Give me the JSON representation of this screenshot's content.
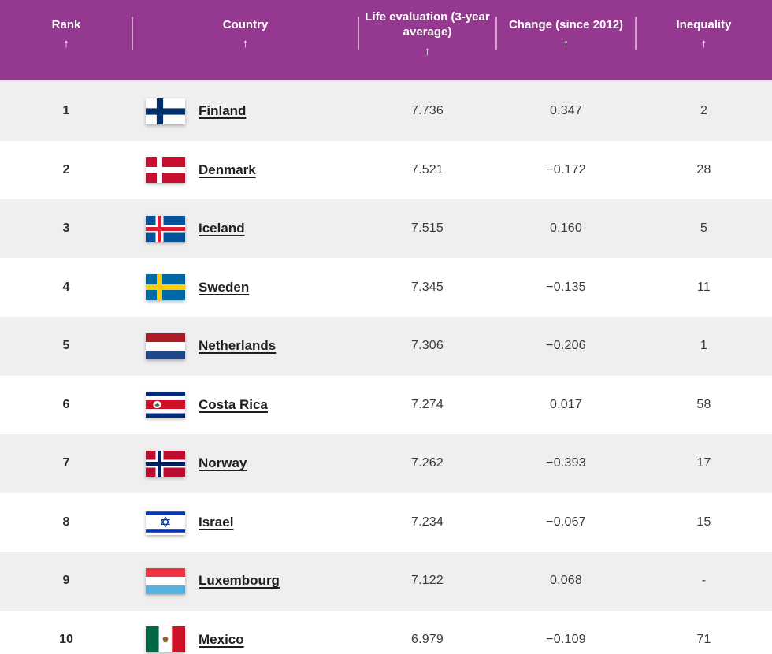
{
  "header": {
    "columns": [
      {
        "id": "rank",
        "label": "Rank",
        "sort_icon": "↑"
      },
      {
        "id": "country",
        "label": "Country",
        "sort_icon": "↑"
      },
      {
        "id": "life_evaluation",
        "label": "Life evaluation (3-year average)",
        "sort_icon": "↑"
      },
      {
        "id": "change",
        "label": "Change (since 2012)",
        "sort_icon": "↑"
      },
      {
        "id": "inequality",
        "label": "Inequality",
        "sort_icon": "↑"
      }
    ]
  },
  "table": {
    "rows": [
      {
        "rank": "1",
        "flag": "finland",
        "country": "Finland",
        "life_evaluation": "7.736",
        "change": "0.347",
        "inequality": "2"
      },
      {
        "rank": "2",
        "flag": "denmark",
        "country": "Denmark",
        "life_evaluation": "7.521",
        "change": "−0.172",
        "inequality": "28"
      },
      {
        "rank": "3",
        "flag": "iceland",
        "country": "Iceland",
        "life_evaluation": "7.515",
        "change": "0.160",
        "inequality": "5"
      },
      {
        "rank": "4",
        "flag": "sweden",
        "country": "Sweden",
        "life_evaluation": "7.345",
        "change": "−0.135",
        "inequality": "11"
      },
      {
        "rank": "5",
        "flag": "netherlands",
        "country": "Netherlands",
        "life_evaluation": "7.306",
        "change": "−0.206",
        "inequality": "1"
      },
      {
        "rank": "6",
        "flag": "costa-rica",
        "country": "Costa Rica",
        "life_evaluation": "7.274",
        "change": "0.017",
        "inequality": "58"
      },
      {
        "rank": "7",
        "flag": "norway",
        "country": "Norway",
        "life_evaluation": "7.262",
        "change": "−0.393",
        "inequality": "17"
      },
      {
        "rank": "8",
        "flag": "israel",
        "country": "Israel",
        "life_evaluation": "7.234",
        "change": "−0.067",
        "inequality": "15"
      },
      {
        "rank": "9",
        "flag": "luxembourg",
        "country": "Luxembourg",
        "life_evaluation": "7.122",
        "change": "0.068",
        "inequality": "-"
      },
      {
        "rank": "10",
        "flag": "mexico",
        "country": "Mexico",
        "life_evaluation": "6.979",
        "change": "−0.109",
        "inequality": "71"
      }
    ]
  },
  "colors": {
    "header_background": "#94398F",
    "header_text": "#FFFFFF",
    "row_alternate": "#EFEFF0",
    "row_default": "#FFFFFF",
    "body_text": "#2B2B2B"
  }
}
